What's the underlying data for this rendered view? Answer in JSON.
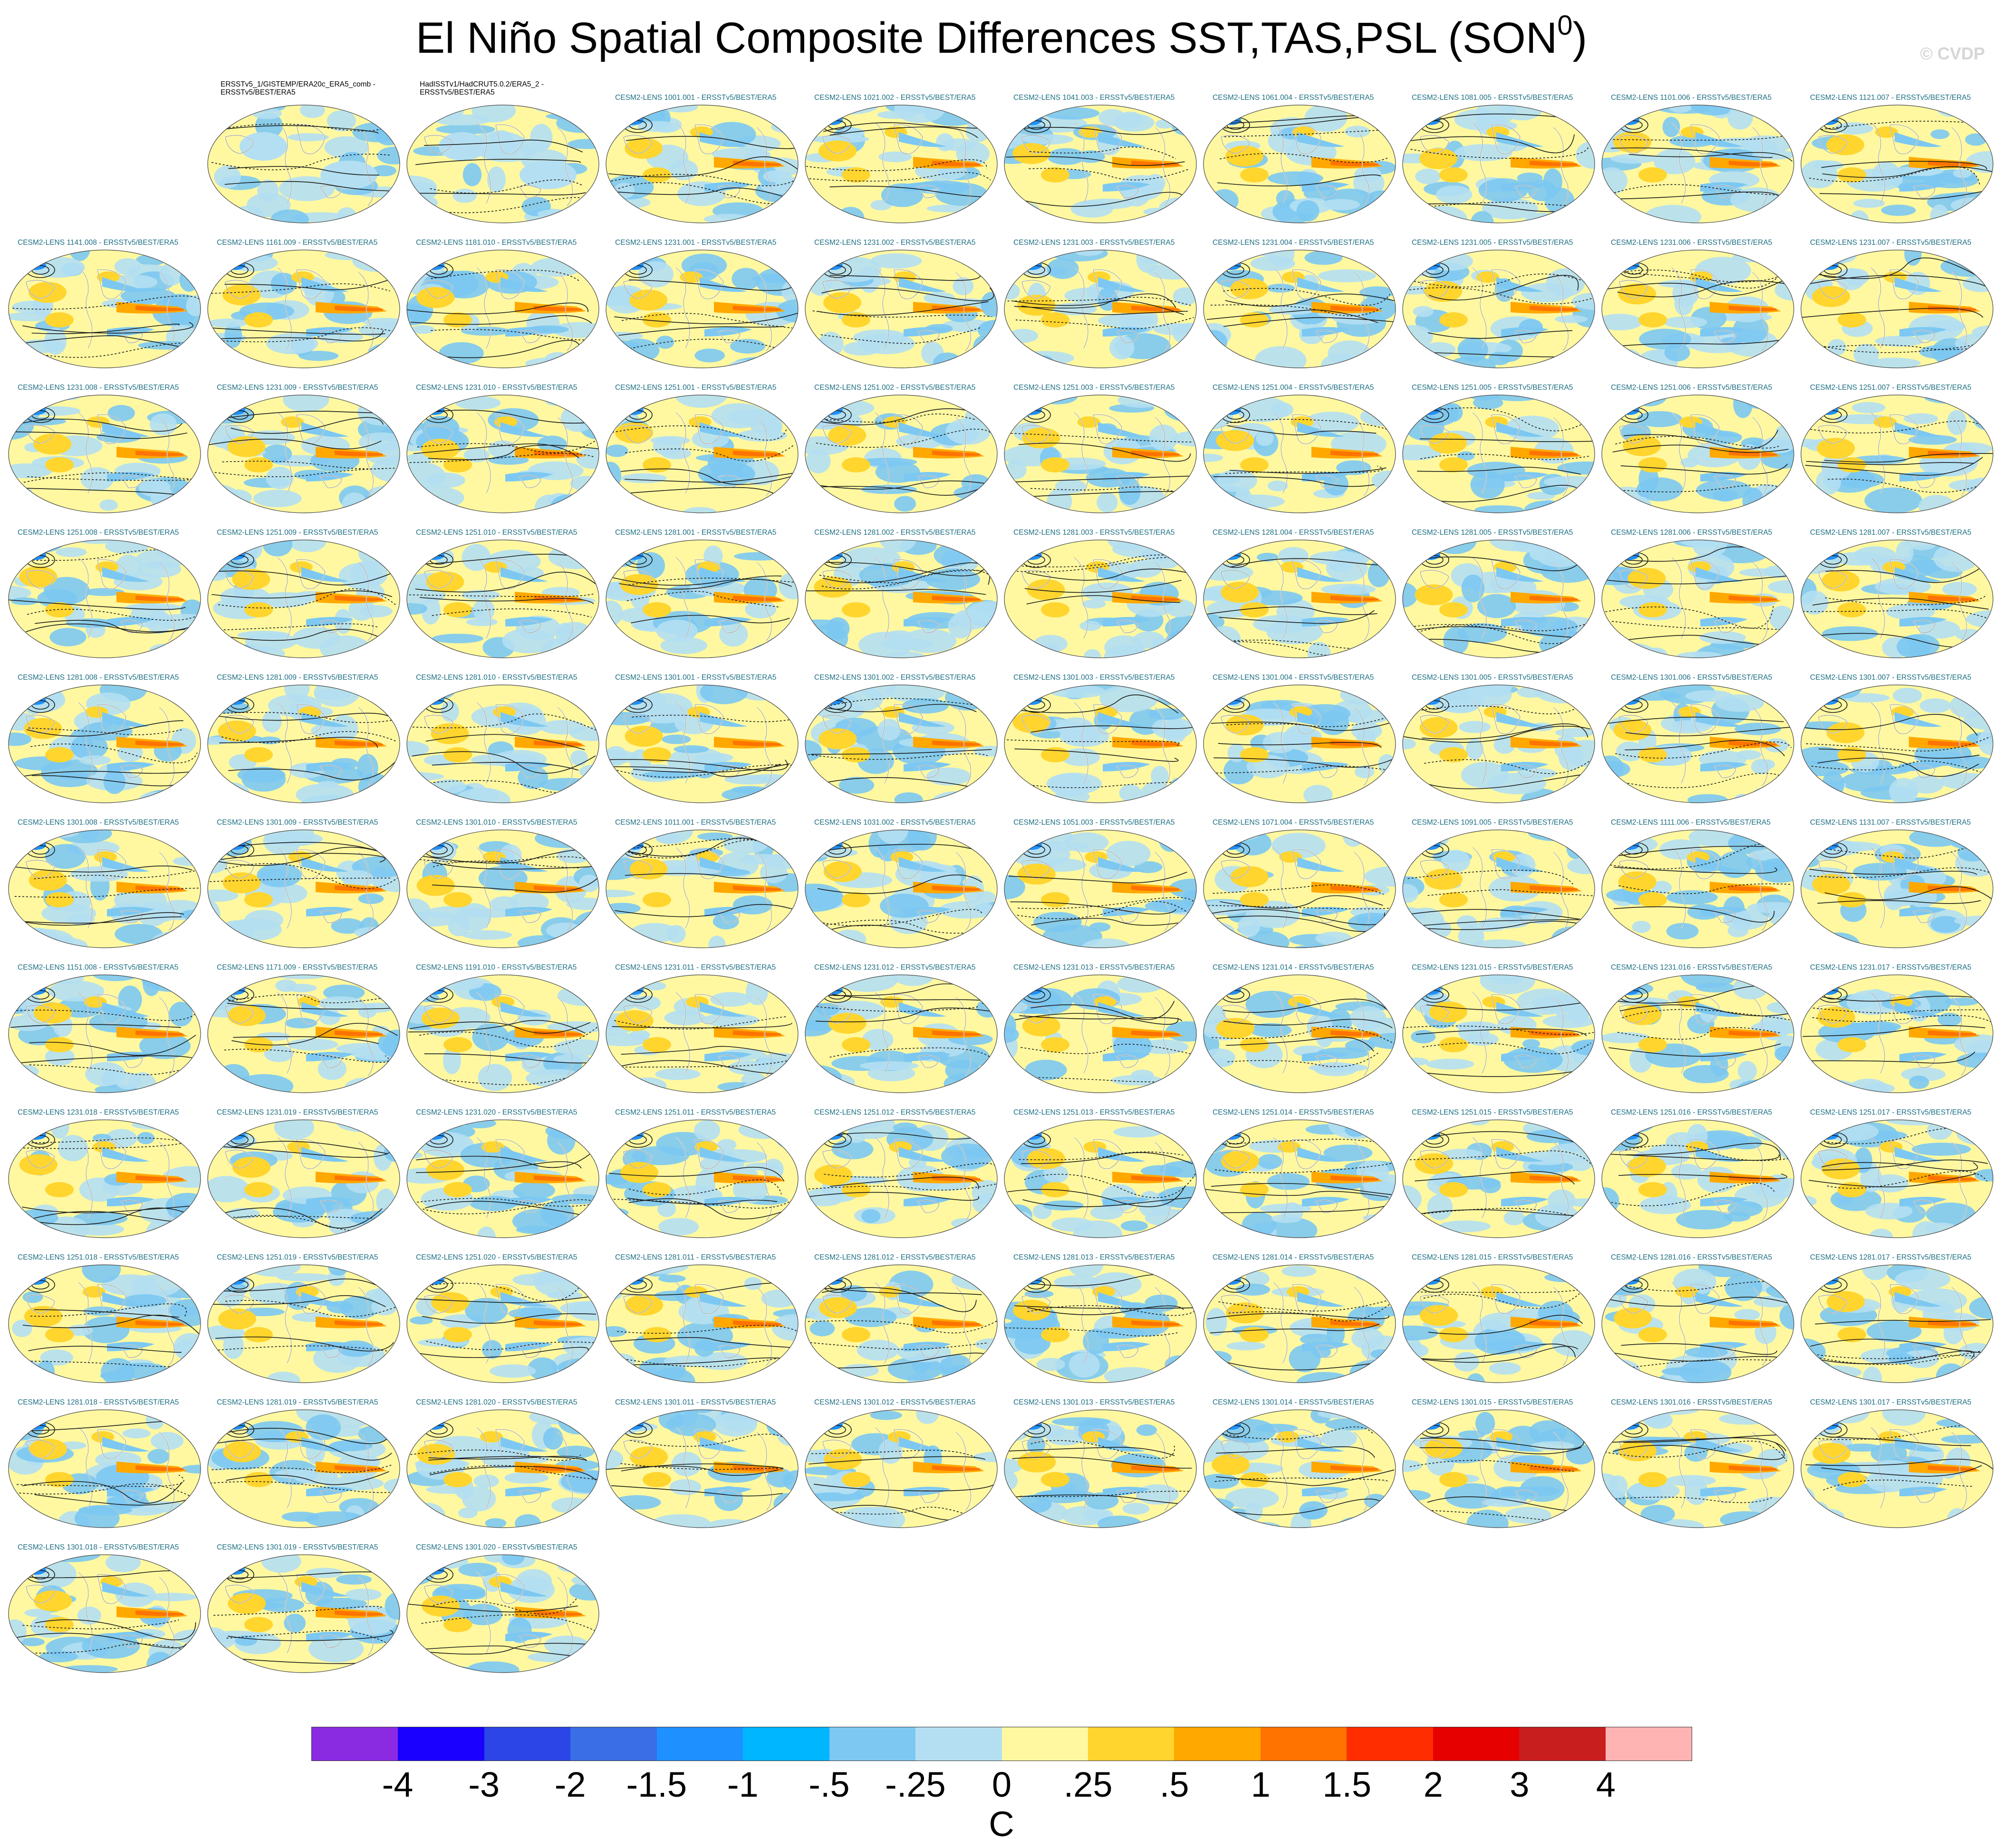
{
  "title": {
    "main": "El Niño Spatial Composite Differences SST,TAS,PSL (SON",
    "sup": "0",
    "tail": ")"
  },
  "copyright": "© CVDP",
  "colorbar": {
    "colors": [
      "#8a2be2",
      "#1a00ff",
      "#2c45e6",
      "#3a6ee6",
      "#1e90ff",
      "#00b6ff",
      "#7cc8f2",
      "#b4dff2",
      "#fff8a0",
      "#ffd52e",
      "#ffa800",
      "#ff7300",
      "#ff2d00",
      "#e60000",
      "#c81e1e",
      "#ffb4b4"
    ],
    "labels": [
      "-4",
      "-3",
      "-2",
      "-1.5",
      "-1",
      "-.5",
      "-.25",
      "0",
      ".25",
      ".5",
      "1",
      "1.5",
      "2",
      "3",
      "4"
    ],
    "units": "C"
  },
  "panels": [
    "ERSSTv5_1/GISTEMP/ERA20c_ERA5_comb - ERSSTv5/BEST/ERA5",
    "HadISSTv1/HadCRUT5.0.2/ERA5_2 - ERSSTv5/BEST/ERA5",
    "CESM2-LENS 1001.001 - ERSSTv5/BEST/ERA5",
    "CESM2-LENS 1021.002 - ERSSTv5/BEST/ERA5",
    "CESM2-LENS 1041.003 - ERSSTv5/BEST/ERA5",
    "CESM2-LENS 1061.004 - ERSSTv5/BEST/ERA5",
    "CESM2-LENS 1081.005 - ERSSTv5/BEST/ERA5",
    "CESM2-LENS 1101.006 - ERSSTv5/BEST/ERA5",
    "CESM2-LENS 1121.007 - ERSSTv5/BEST/ERA5",
    "CESM2-LENS 1141.008 - ERSSTv5/BEST/ERA5",
    "CESM2-LENS 1161.009 - ERSSTv5/BEST/ERA5",
    "CESM2-LENS 1181.010 - ERSSTv5/BEST/ERA5",
    "CESM2-LENS 1231.001 - ERSSTv5/BEST/ERA5",
    "CESM2-LENS 1231.002 - ERSSTv5/BEST/ERA5",
    "CESM2-LENS 1231.003 - ERSSTv5/BEST/ERA5",
    "CESM2-LENS 1231.004 - ERSSTv5/BEST/ERA5",
    "CESM2-LENS 1231.005 - ERSSTv5/BEST/ERA5",
    "CESM2-LENS 1231.006 - ERSSTv5/BEST/ERA5",
    "CESM2-LENS 1231.007 - ERSSTv5/BEST/ERA5",
    "CESM2-LENS 1231.008 - ERSSTv5/BEST/ERA5",
    "CESM2-LENS 1231.009 - ERSSTv5/BEST/ERA5",
    "CESM2-LENS 1231.010 - ERSSTv5/BEST/ERA5",
    "CESM2-LENS 1251.001 - ERSSTv5/BEST/ERA5",
    "CESM2-LENS 1251.002 - ERSSTv5/BEST/ERA5",
    "CESM2-LENS 1251.003 - ERSSTv5/BEST/ERA5",
    "CESM2-LENS 1251.004 - ERSSTv5/BEST/ERA5",
    "CESM2-LENS 1251.005 - ERSSTv5/BEST/ERA5",
    "CESM2-LENS 1251.006 - ERSSTv5/BEST/ERA5",
    "CESM2-LENS 1251.007 - ERSSTv5/BEST/ERA5",
    "CESM2-LENS 1251.008 - ERSSTv5/BEST/ERA5",
    "CESM2-LENS 1251.009 - ERSSTv5/BEST/ERA5",
    "CESM2-LENS 1251.010 - ERSSTv5/BEST/ERA5",
    "CESM2-LENS 1281.001 - ERSSTv5/BEST/ERA5",
    "CESM2-LENS 1281.002 - ERSSTv5/BEST/ERA5",
    "CESM2-LENS 1281.003 - ERSSTv5/BEST/ERA5",
    "CESM2-LENS 1281.004 - ERSSTv5/BEST/ERA5",
    "CESM2-LENS 1281.005 - ERSSTv5/BEST/ERA5",
    "CESM2-LENS 1281.006 - ERSSTv5/BEST/ERA5",
    "CESM2-LENS 1281.007 - ERSSTv5/BEST/ERA5",
    "CESM2-LENS 1281.008 - ERSSTv5/BEST/ERA5",
    "CESM2-LENS 1281.009 - ERSSTv5/BEST/ERA5",
    "CESM2-LENS 1281.010 - ERSSTv5/BEST/ERA5",
    "CESM2-LENS 1301.001 - ERSSTv5/BEST/ERA5",
    "CESM2-LENS 1301.002 - ERSSTv5/BEST/ERA5",
    "CESM2-LENS 1301.003 - ERSSTv5/BEST/ERA5",
    "CESM2-LENS 1301.004 - ERSSTv5/BEST/ERA5",
    "CESM2-LENS 1301.005 - ERSSTv5/BEST/ERA5",
    "CESM2-LENS 1301.006 - ERSSTv5/BEST/ERA5",
    "CESM2-LENS 1301.007 - ERSSTv5/BEST/ERA5",
    "CESM2-LENS 1301.008 - ERSSTv5/BEST/ERA5",
    "CESM2-LENS 1301.009 - ERSSTv5/BEST/ERA5",
    "CESM2-LENS 1301.010 - ERSSTv5/BEST/ERA5",
    "CESM2-LENS 1011.001 - ERSSTv5/BEST/ERA5",
    "CESM2-LENS 1031.002 - ERSSTv5/BEST/ERA5",
    "CESM2-LENS 1051.003 - ERSSTv5/BEST/ERA5",
    "CESM2-LENS 1071.004 - ERSSTv5/BEST/ERA5",
    "CESM2-LENS 1091.005 - ERSSTv5/BEST/ERA5",
    "CESM2-LENS 1111.006 - ERSSTv5/BEST/ERA5",
    "CESM2-LENS 1131.007 - ERSSTv5/BEST/ERA5",
    "CESM2-LENS 1151.008 - ERSSTv5/BEST/ERA5",
    "CESM2-LENS 1171.009 - ERSSTv5/BEST/ERA5",
    "CESM2-LENS 1191.010 - ERSSTv5/BEST/ERA5",
    "CESM2-LENS 1231.011 - ERSSTv5/BEST/ERA5",
    "CESM2-LENS 1231.012 - ERSSTv5/BEST/ERA5",
    "CESM2-LENS 1231.013 - ERSSTv5/BEST/ERA5",
    "CESM2-LENS 1231.014 - ERSSTv5/BEST/ERA5",
    "CESM2-LENS 1231.015 - ERSSTv5/BEST/ERA5",
    "CESM2-LENS 1231.016 - ERSSTv5/BEST/ERA5",
    "CESM2-LENS 1231.017 - ERSSTv5/BEST/ERA5",
    "CESM2-LENS 1231.018 - ERSSTv5/BEST/ERA5",
    "CESM2-LENS 1231.019 - ERSSTv5/BEST/ERA5",
    "CESM2-LENS 1231.020 - ERSSTv5/BEST/ERA5",
    "CESM2-LENS 1251.011 - ERSSTv5/BEST/ERA5",
    "CESM2-LENS 1251.012 - ERSSTv5/BEST/ERA5",
    "CESM2-LENS 1251.013 - ERSSTv5/BEST/ERA5",
    "CESM2-LENS 1251.014 - ERSSTv5/BEST/ERA5",
    "CESM2-LENS 1251.015 - ERSSTv5/BEST/ERA5",
    "CESM2-LENS 1251.016 - ERSSTv5/BEST/ERA5",
    "CESM2-LENS 1251.017 - ERSSTv5/BEST/ERA5",
    "CESM2-LENS 1251.018 - ERSSTv5/BEST/ERA5",
    "CESM2-LENS 1251.019 - ERSSTv5/BEST/ERA5",
    "CESM2-LENS 1251.020 - ERSSTv5/BEST/ERA5",
    "CESM2-LENS 1281.011 - ERSSTv5/BEST/ERA5",
    "CESM2-LENS 1281.012 - ERSSTv5/BEST/ERA5",
    "CESM2-LENS 1281.013 - ERSSTv5/BEST/ERA5",
    "CESM2-LENS 1281.014 - ERSSTv5/BEST/ERA5",
    "CESM2-LENS 1281.015 - ERSSTv5/BEST/ERA5",
    "CESM2-LENS 1281.016 - ERSSTv5/BEST/ERA5",
    "CESM2-LENS 1281.017 - ERSSTv5/BEST/ERA5",
    "CESM2-LENS 1281.018 - ERSSTv5/BEST/ERA5",
    "CESM2-LENS 1281.019 - ERSSTv5/BEST/ERA5",
    "CESM2-LENS 1281.020 - ERSSTv5/BEST/ERA5",
    "CESM2-LENS 1301.011 - ERSSTv5/BEST/ERA5",
    "CESM2-LENS 1301.012 - ERSSTv5/BEST/ERA5",
    "CESM2-LENS 1301.013 - ERSSTv5/BEST/ERA5",
    "CESM2-LENS 1301.014 - ERSSTv5/BEST/ERA5",
    "CESM2-LENS 1301.015 - ERSSTv5/BEST/ERA5",
    "CESM2-LENS 1301.016 - ERSSTv5/BEST/ERA5",
    "CESM2-LENS 1301.017 - ERSSTv5/BEST/ERA5",
    "CESM2-LENS 1301.018 - ERSSTv5/BEST/ERA5",
    "CESM2-LENS 1301.019 - ERSSTv5/BEST/ERA5",
    "CESM2-LENS 1301.020 - ERSSTv5/BEST/ERA5"
  ]
}
